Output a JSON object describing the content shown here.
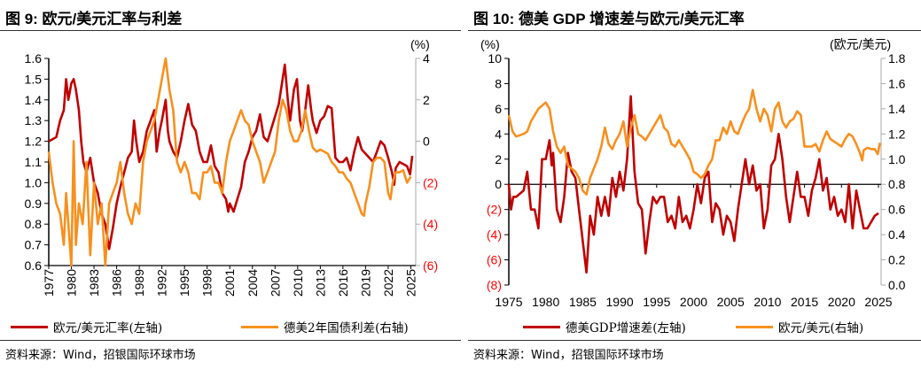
{
  "left_panel": {
    "title": "图 9: 欧元/美元汇率与利差",
    "source": "资料来源：Wind，招银国际环球市场"
  },
  "right_panel": {
    "title": "图 10: 德美 GDP 增速差与欧元/美元汇率",
    "source": "资料来源：Wind，招银国际环球市场"
  },
  "colors": {
    "red": "#C00000",
    "orange": "#F7901E",
    "negative_tick": "#FF0000"
  },
  "chart_data": [
    {
      "type": "line",
      "title": "图 9: 欧元/美元汇率与利差",
      "x_ticks": [
        "1977",
        "1980",
        "1983",
        "1986",
        "1989",
        "1992",
        "1995",
        "1998",
        "2001",
        "2004",
        "2007",
        "2010",
        "2013",
        "2016",
        "2019",
        "2022",
        "2025"
      ],
      "xlim": [
        1977,
        2025.3
      ],
      "y_left": {
        "ylim": [
          0.6,
          1.6
        ],
        "ticks": [
          "0.6",
          "0.7",
          "0.8",
          "0.9",
          "1.0",
          "1.1",
          "1.2",
          "1.3",
          "1.4",
          "1.5",
          "1.6"
        ]
      },
      "y_right": {
        "unit": "(%)",
        "ylim": [
          -6,
          4
        ],
        "ticks": [
          "(6)",
          "(4)",
          "(2)",
          "0",
          "2",
          "4"
        ]
      },
      "grid": false,
      "legend": "bottom",
      "series": [
        {
          "name": "欧元/美元汇率(左轴)",
          "axis": "left",
          "color": "#C00000",
          "x": [
            1977,
            1977.5,
            1978,
            1978.5,
            1979,
            1979.3,
            1979.6,
            1980,
            1980.3,
            1980.6,
            1981,
            1981.3,
            1981.6,
            1982,
            1982.5,
            1983,
            1983.5,
            1984,
            1984.5,
            1985,
            1985.5,
            1986,
            1986.5,
            1987,
            1987.5,
            1988,
            1988.3,
            1988.6,
            1989,
            1989.5,
            1990,
            1990.5,
            1991,
            1991.3,
            1991.7,
            1992,
            1992.5,
            1992.8,
            1993,
            1993.5,
            1994,
            1994.5,
            1995,
            1995.5,
            1996,
            1996.5,
            1997,
            1997.5,
            1998,
            1998.5,
            1999,
            1999.5,
            2000,
            2000.5,
            2000.8,
            2001,
            2001.5,
            2002,
            2002.5,
            2003,
            2003.5,
            2004,
            2004.5,
            2005,
            2005.5,
            2006,
            2006.5,
            2007,
            2007.5,
            2008,
            2008.3,
            2008.7,
            2009,
            2009.5,
            2009.9,
            2010.3,
            2010.6,
            2011,
            2011.4,
            2011.8,
            2012,
            2012.5,
            2013,
            2013.5,
            2014,
            2014.5,
            2015,
            2015.5,
            2016,
            2016.5,
            2017,
            2017.5,
            2018,
            2018.5,
            2019,
            2019.5,
            2020,
            2020.5,
            2021,
            2021.5,
            2022,
            2022.5,
            2022.8,
            2023,
            2023.5,
            2024,
            2024.5,
            2024.9,
            2025.2
          ],
          "y": [
            1.2,
            1.21,
            1.22,
            1.3,
            1.35,
            1.5,
            1.4,
            1.48,
            1.5,
            1.45,
            1.35,
            1.2,
            1.1,
            1.05,
            1.12,
            1.0,
            0.95,
            0.85,
            0.8,
            0.68,
            0.78,
            0.9,
            0.98,
            1.05,
            1.12,
            1.15,
            1.3,
            1.2,
            1.1,
            1.15,
            1.25,
            1.3,
            1.35,
            1.15,
            1.25,
            1.3,
            1.4,
            1.25,
            1.2,
            1.15,
            1.12,
            1.2,
            1.3,
            1.38,
            1.28,
            1.25,
            1.15,
            1.1,
            1.1,
            1.18,
            1.08,
            1.05,
            0.95,
            0.92,
            0.86,
            0.9,
            0.86,
            0.92,
            0.98,
            1.1,
            1.15,
            1.22,
            1.25,
            1.33,
            1.22,
            1.2,
            1.26,
            1.32,
            1.38,
            1.5,
            1.57,
            1.4,
            1.3,
            1.45,
            1.5,
            1.3,
            1.25,
            1.35,
            1.47,
            1.35,
            1.3,
            1.24,
            1.3,
            1.32,
            1.37,
            1.36,
            1.12,
            1.1,
            1.1,
            1.12,
            1.06,
            1.15,
            1.22,
            1.16,
            1.14,
            1.12,
            1.1,
            1.15,
            1.2,
            1.18,
            1.12,
            1.05,
            0.99,
            1.07,
            1.1,
            1.09,
            1.08,
            1.04,
            1.13
          ]
        },
        {
          "name": "德美2年国债利差(右轴)",
          "axis": "right",
          "color": "#F7901E",
          "x": [
            1977,
            1977.5,
            1978,
            1978.5,
            1979,
            1979.3,
            1979.6,
            1980,
            1980.3,
            1980.6,
            1981,
            1981.5,
            1982,
            1982.5,
            1983,
            1983.5,
            1984,
            1984.5,
            1985,
            1985.5,
            1986,
            1986.5,
            1987,
            1987.5,
            1988,
            1988.5,
            1989,
            1989.5,
            1990,
            1990.5,
            1991,
            1991.5,
            1992,
            1992.5,
            1993,
            1993.5,
            1994,
            1994.5,
            1995,
            1995.5,
            1996,
            1996.5,
            1997,
            1997.5,
            1998,
            1998.5,
            1999,
            1999.5,
            2000,
            2000.5,
            2001,
            2001.5,
            2002,
            2002.5,
            2003,
            2003.5,
            2004,
            2004.5,
            2005,
            2005.5,
            2006,
            2006.5,
            2007,
            2007.5,
            2008,
            2008.5,
            2009,
            2009.5,
            2010,
            2010.5,
            2011,
            2011.5,
            2012,
            2012.5,
            2013,
            2013.5,
            2014,
            2014.5,
            2015,
            2015.5,
            2016,
            2016.5,
            2017,
            2017.5,
            2018,
            2018.5,
            2018.8,
            2019,
            2019.5,
            2020,
            2020.5,
            2021,
            2021.5,
            2022,
            2022.3,
            2022.6,
            2023,
            2023.5,
            2024,
            2024.5,
            2025
          ],
          "y": [
            -0.5,
            -2,
            -3,
            -3.5,
            -5,
            -2.5,
            -4,
            -6,
            0,
            -5,
            -3,
            -4,
            -1,
            -5.5,
            -2,
            -4,
            -3,
            -6,
            -3,
            -2.5,
            -2,
            -1,
            -2.5,
            -3.5,
            -4,
            -3,
            -3.5,
            -1,
            0,
            0.5,
            1,
            2,
            3,
            4,
            2.5,
            1.5,
            -1,
            -1.5,
            -1,
            -1.5,
            -2.5,
            -2.5,
            -2.8,
            -1.5,
            -1.5,
            -1.2,
            -2,
            -2,
            -2.5,
            -1,
            0,
            0.5,
            1,
            1.5,
            1,
            0.8,
            0,
            -0.5,
            -1,
            -2,
            -1.5,
            -1,
            -0.5,
            1,
            2,
            1.5,
            0.5,
            0,
            0,
            0.5,
            1.5,
            0.5,
            -0.3,
            -0.5,
            -0.4,
            -0.5,
            -0.6,
            -1,
            -1.2,
            -1.5,
            -1.5,
            -1.8,
            -2,
            -2.5,
            -3,
            -3.5,
            -3.6,
            -3,
            -2.2,
            -1,
            -0.8,
            -0.8,
            -1,
            -2.5,
            -2.8,
            -2,
            -1.5,
            -1.5,
            -1.4,
            -2,
            -1.7
          ]
        }
      ]
    },
    {
      "type": "line",
      "title": "图 10: 德美 GDP 增速差与欧元/美元汇率",
      "x_ticks": [
        "1975",
        "1980",
        "1985",
        "1990",
        "1995",
        "2000",
        "2005",
        "2010",
        "2015",
        "2020",
        "2025"
      ],
      "xlim": [
        1975,
        2025
      ],
      "y_left": {
        "unit": "(%)",
        "ylim": [
          -8,
          10
        ],
        "ticks": [
          "(8)",
          "(6)",
          "(4)",
          "(2)",
          "0",
          "2",
          "4",
          "6",
          "8",
          "10"
        ]
      },
      "y_right": {
        "unit": "(欧元/美元)",
        "ylim": [
          0.0,
          1.8
        ],
        "ticks": [
          "0.0",
          "0.2",
          "0.4",
          "0.6",
          "0.8",
          "1.0",
          "1.2",
          "1.4",
          "1.6",
          "1.8"
        ]
      },
      "grid": false,
      "legend": "bottom",
      "series": [
        {
          "name": "德美GDP增速差(左轴)",
          "axis": "left",
          "color": "#C00000",
          "x": [
            1975,
            1975.3,
            1975.6,
            1976,
            1977,
            1977.5,
            1978,
            1978.5,
            1979,
            1979.5,
            1980,
            1980.5,
            1980.8,
            1981,
            1981.5,
            1982,
            1982.5,
            1983,
            1983.5,
            1984,
            1984.5,
            1985,
            1985.5,
            1986,
            1986.5,
            1987,
            1987.5,
            1988,
            1988.5,
            1989,
            1989.5,
            1990,
            1990.5,
            1991,
            1991.5,
            1992,
            1992.5,
            1993,
            1993.5,
            1994,
            1994.5,
            1995,
            1995.5,
            1996,
            1996.5,
            1997,
            1997.5,
            1998,
            1998.5,
            1999,
            1999.5,
            2000,
            2000.5,
            2001,
            2001.5,
            2002,
            2002.5,
            2003,
            2003.5,
            2004,
            2004.5,
            2005,
            2005.5,
            2006,
            2006.5,
            2007,
            2007.5,
            2008,
            2008.5,
            2009,
            2009.5,
            2010,
            2010.5,
            2011,
            2011.5,
            2012,
            2012.5,
            2013,
            2013.5,
            2014,
            2014.5,
            2015,
            2015.5,
            2016,
            2016.5,
            2017,
            2017.5,
            2018,
            2018.5,
            2019,
            2019.5,
            2020,
            2020.5,
            2021,
            2021.5,
            2022,
            2022.5,
            2023,
            2023.5,
            2024,
            2024.5,
            2025
          ],
          "y": [
            0,
            -2,
            -1,
            -1,
            -0.5,
            1,
            -2,
            -2,
            -3.5,
            2,
            2,
            3.5,
            1.5,
            2.5,
            -2,
            -3,
            -1,
            2.5,
            1,
            0.5,
            -2,
            -4.5,
            -7,
            -2.5,
            -4,
            -1,
            -2.5,
            -1,
            -2.5,
            0.5,
            -1,
            1,
            -0.5,
            2,
            7,
            1,
            -1.5,
            -2,
            -5.5,
            -3,
            -1,
            -1.5,
            -1,
            -1,
            -3,
            -2.5,
            -3.5,
            -1,
            -3,
            -2.5,
            -3.5,
            -2,
            0,
            -1.5,
            0.5,
            1,
            -3,
            -1.5,
            -2,
            -4,
            -2.5,
            -3,
            -4.5,
            -2,
            0,
            2,
            0,
            1.5,
            -0.5,
            0,
            -3.5,
            -2,
            1.5,
            2,
            4,
            2,
            -1,
            -3,
            -1,
            1,
            -1,
            -1,
            -2.5,
            -0.5,
            0.5,
            2,
            -0.5,
            0.5,
            -2,
            -1,
            -2.5,
            -2,
            -3,
            0,
            -3.5,
            -0.5,
            -2,
            -3.5,
            -3.5,
            -3,
            -2.5,
            -2.3
          ]
        },
        {
          "name": "欧元/美元(右轴)",
          "axis": "right",
          "color": "#F7901E",
          "x": [
            1975,
            1975.5,
            1976,
            1977,
            1977.5,
            1978,
            1979,
            1980,
            1980.5,
            1981,
            1981.5,
            1982,
            1982.5,
            1983,
            1984,
            1984.5,
            1985,
            1985.5,
            1986,
            1987,
            1987.5,
            1988,
            1988.5,
            1989,
            1989.5,
            1990,
            1990.5,
            1991,
            1991.5,
            1992,
            1992.5,
            1993,
            1993.5,
            1994,
            1995,
            1995.5,
            1996,
            1996.5,
            1997,
            1997.5,
            1998,
            1998.5,
            1999,
            1999.5,
            2000,
            2000.5,
            2001,
            2001.5,
            2002,
            2002.5,
            2003,
            2003.5,
            2004,
            2004.5,
            2005,
            2005.5,
            2006,
            2006.5,
            2007,
            2007.5,
            2008,
            2008.5,
            2009,
            2009.5,
            2010,
            2010.5,
            2011,
            2011.5,
            2012,
            2012.5,
            2013,
            2013.5,
            2014,
            2014.5,
            2015,
            2015.5,
            2016,
            2016.5,
            2017,
            2017.5,
            2018,
            2018.5,
            2019,
            2019.5,
            2020,
            2020.5,
            2021,
            2021.5,
            2022,
            2022.5,
            2022.8,
            2023,
            2023.5,
            2024,
            2024.5,
            2024.9,
            2025.2
          ],
          "y": [
            1.35,
            1.22,
            1.18,
            1.2,
            1.22,
            1.3,
            1.4,
            1.45,
            1.4,
            1.22,
            1.1,
            1.05,
            1.1,
            0.95,
            0.9,
            0.85,
            0.75,
            0.72,
            0.85,
            1.0,
            1.1,
            1.25,
            1.12,
            1.08,
            1.15,
            1.2,
            1.3,
            1.1,
            1.25,
            1.35,
            1.2,
            1.18,
            1.15,
            1.2,
            1.3,
            1.35,
            1.25,
            1.22,
            1.12,
            1.1,
            1.15,
            1.1,
            1.05,
            1.0,
            0.9,
            0.88,
            0.85,
            0.88,
            0.95,
            1.0,
            1.15,
            1.15,
            1.25,
            1.2,
            1.3,
            1.22,
            1.2,
            1.28,
            1.35,
            1.4,
            1.55,
            1.4,
            1.3,
            1.4,
            1.35,
            1.22,
            1.4,
            1.45,
            1.3,
            1.25,
            1.3,
            1.32,
            1.38,
            1.35,
            1.1,
            1.1,
            1.1,
            1.12,
            1.06,
            1.15,
            1.22,
            1.16,
            1.14,
            1.12,
            1.1,
            1.16,
            1.2,
            1.18,
            1.12,
            1.05,
            0.99,
            1.07,
            1.09,
            1.08,
            1.08,
            1.04,
            1.13
          ]
        }
      ]
    }
  ]
}
